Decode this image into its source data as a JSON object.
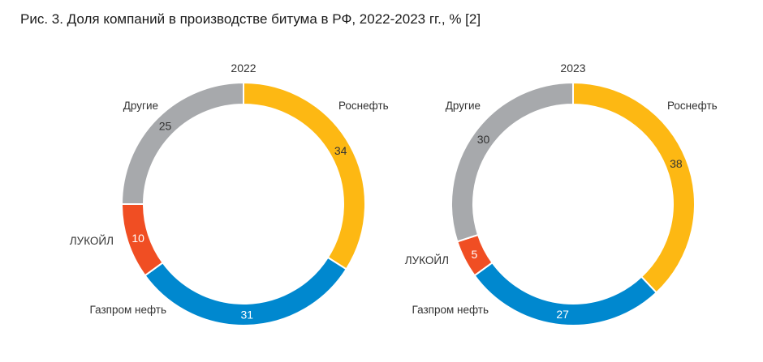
{
  "figure": {
    "title": "Рис. 3. Доля компаний в производстве битума в РФ, 2022-2023 гг., % [2]"
  },
  "colors": {
    "Роснефть": "#FDB813",
    "Газпром нефть": "#0088CF",
    "ЛУКОЙЛ": "#F04E23",
    "Другие": "#A7A9AC"
  },
  "chart_data": [
    {
      "type": "pie",
      "subtitle": "2022",
      "categories": [
        "Роснефть",
        "Газпром нефть",
        "ЛУКОЙЛ",
        "Другие"
      ],
      "values": [
        34,
        31,
        10,
        25
      ],
      "labels": [
        "Роснефть",
        "Газпром нефть",
        "ЛУКОЙЛ",
        "Другие"
      ],
      "value_labels": [
        "34",
        "31",
        "10",
        "25"
      ]
    },
    {
      "type": "pie",
      "subtitle": "2023",
      "categories": [
        "Роснефть",
        "Газпром нефть",
        "ЛУКОЙЛ",
        "Другие"
      ],
      "values": [
        38,
        27,
        5,
        30
      ],
      "labels": [
        "Роснефть",
        "Газпром нефть",
        "ЛУКОЙЛ",
        "Другие"
      ],
      "value_labels": [
        "38",
        "27",
        "5",
        "30"
      ]
    }
  ]
}
